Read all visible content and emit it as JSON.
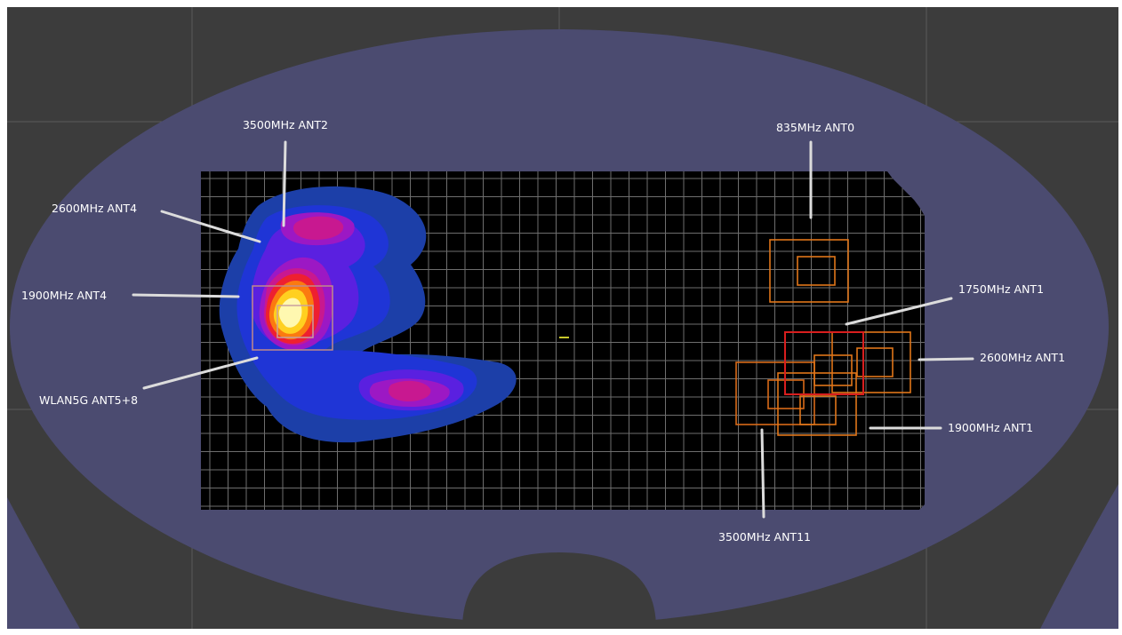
{
  "colors": {
    "viewport_bg": "#3c3c3c",
    "phantom": "#4b4b70",
    "scan_area": "#000000",
    "scan_grid": "#707070",
    "label_text": "#ffffff",
    "leader_line": "#dcdcdc",
    "box_orange": "#e0761a",
    "box_red": "#d81e1e"
  },
  "heatmap_levels": [
    {
      "color": "#1c3fa8"
    },
    {
      "color": "#1f35d6"
    },
    {
      "color": "#5a20e0"
    },
    {
      "color": "#9c18c4"
    },
    {
      "color": "#c81890"
    },
    {
      "color": "#ee2030"
    },
    {
      "color": "#fb7a10"
    },
    {
      "color": "#ffd020"
    },
    {
      "color": "#fff8b0"
    }
  ],
  "labels": {
    "ant2_3500": "3500MHz ANT2",
    "ant4_2600": "2600MHz ANT4",
    "ant4_1900": "1900MHz ANT4",
    "wlan5g": "WLAN5G ANT5+8",
    "ant0_835": "835MHz ANT0",
    "ant1_1750": "1750MHz ANT1",
    "ant1_2600": "2600MHz ANT1",
    "ant1_1900": "1900MHz ANT1",
    "ant11_3500": "3500MHz ANT11"
  }
}
